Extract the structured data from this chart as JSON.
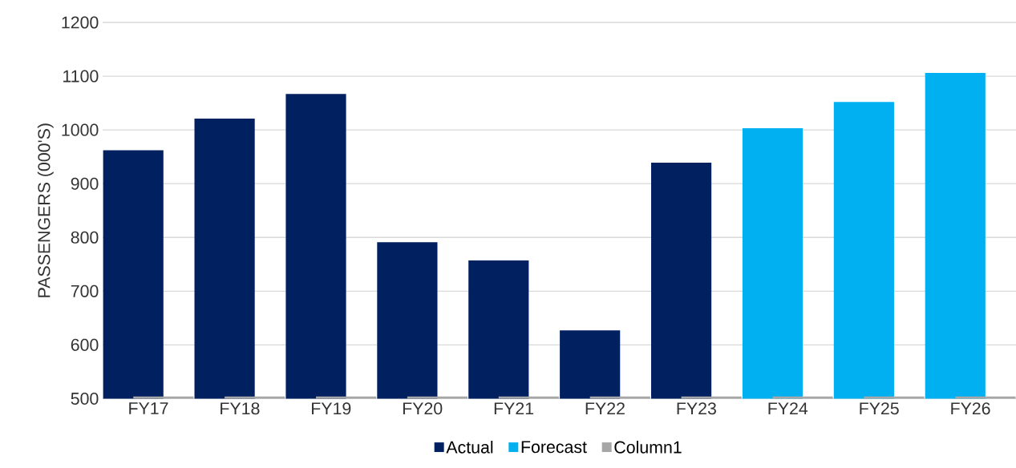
{
  "chart_data": {
    "type": "bar",
    "ylabel": "PASSENGERS (000'S)",
    "categories": [
      "FY17",
      "FY18",
      "FY19",
      "FY20",
      "FY21",
      "FY22",
      "FY23",
      "FY24",
      "FY25",
      "FY26"
    ],
    "series": [
      {
        "name": "Actual",
        "color": "#002060",
        "values": [
          962,
          1021,
          1067,
          791,
          757,
          627,
          939,
          null,
          null,
          null
        ]
      },
      {
        "name": "Forecast",
        "color": "#00b0f0",
        "values": [
          null,
          null,
          null,
          null,
          null,
          null,
          null,
          1003,
          1052,
          1106
        ]
      },
      {
        "name": "Column1",
        "color": "#a6a6a6",
        "values": [
          504,
          504,
          504,
          504,
          504,
          504,
          504,
          504,
          504,
          504
        ]
      }
    ],
    "ylim": [
      500,
      1200
    ],
    "yticks": [
      500,
      600,
      700,
      800,
      900,
      1000,
      1100,
      1200
    ],
    "grid": "y",
    "legend": "bottom"
  }
}
